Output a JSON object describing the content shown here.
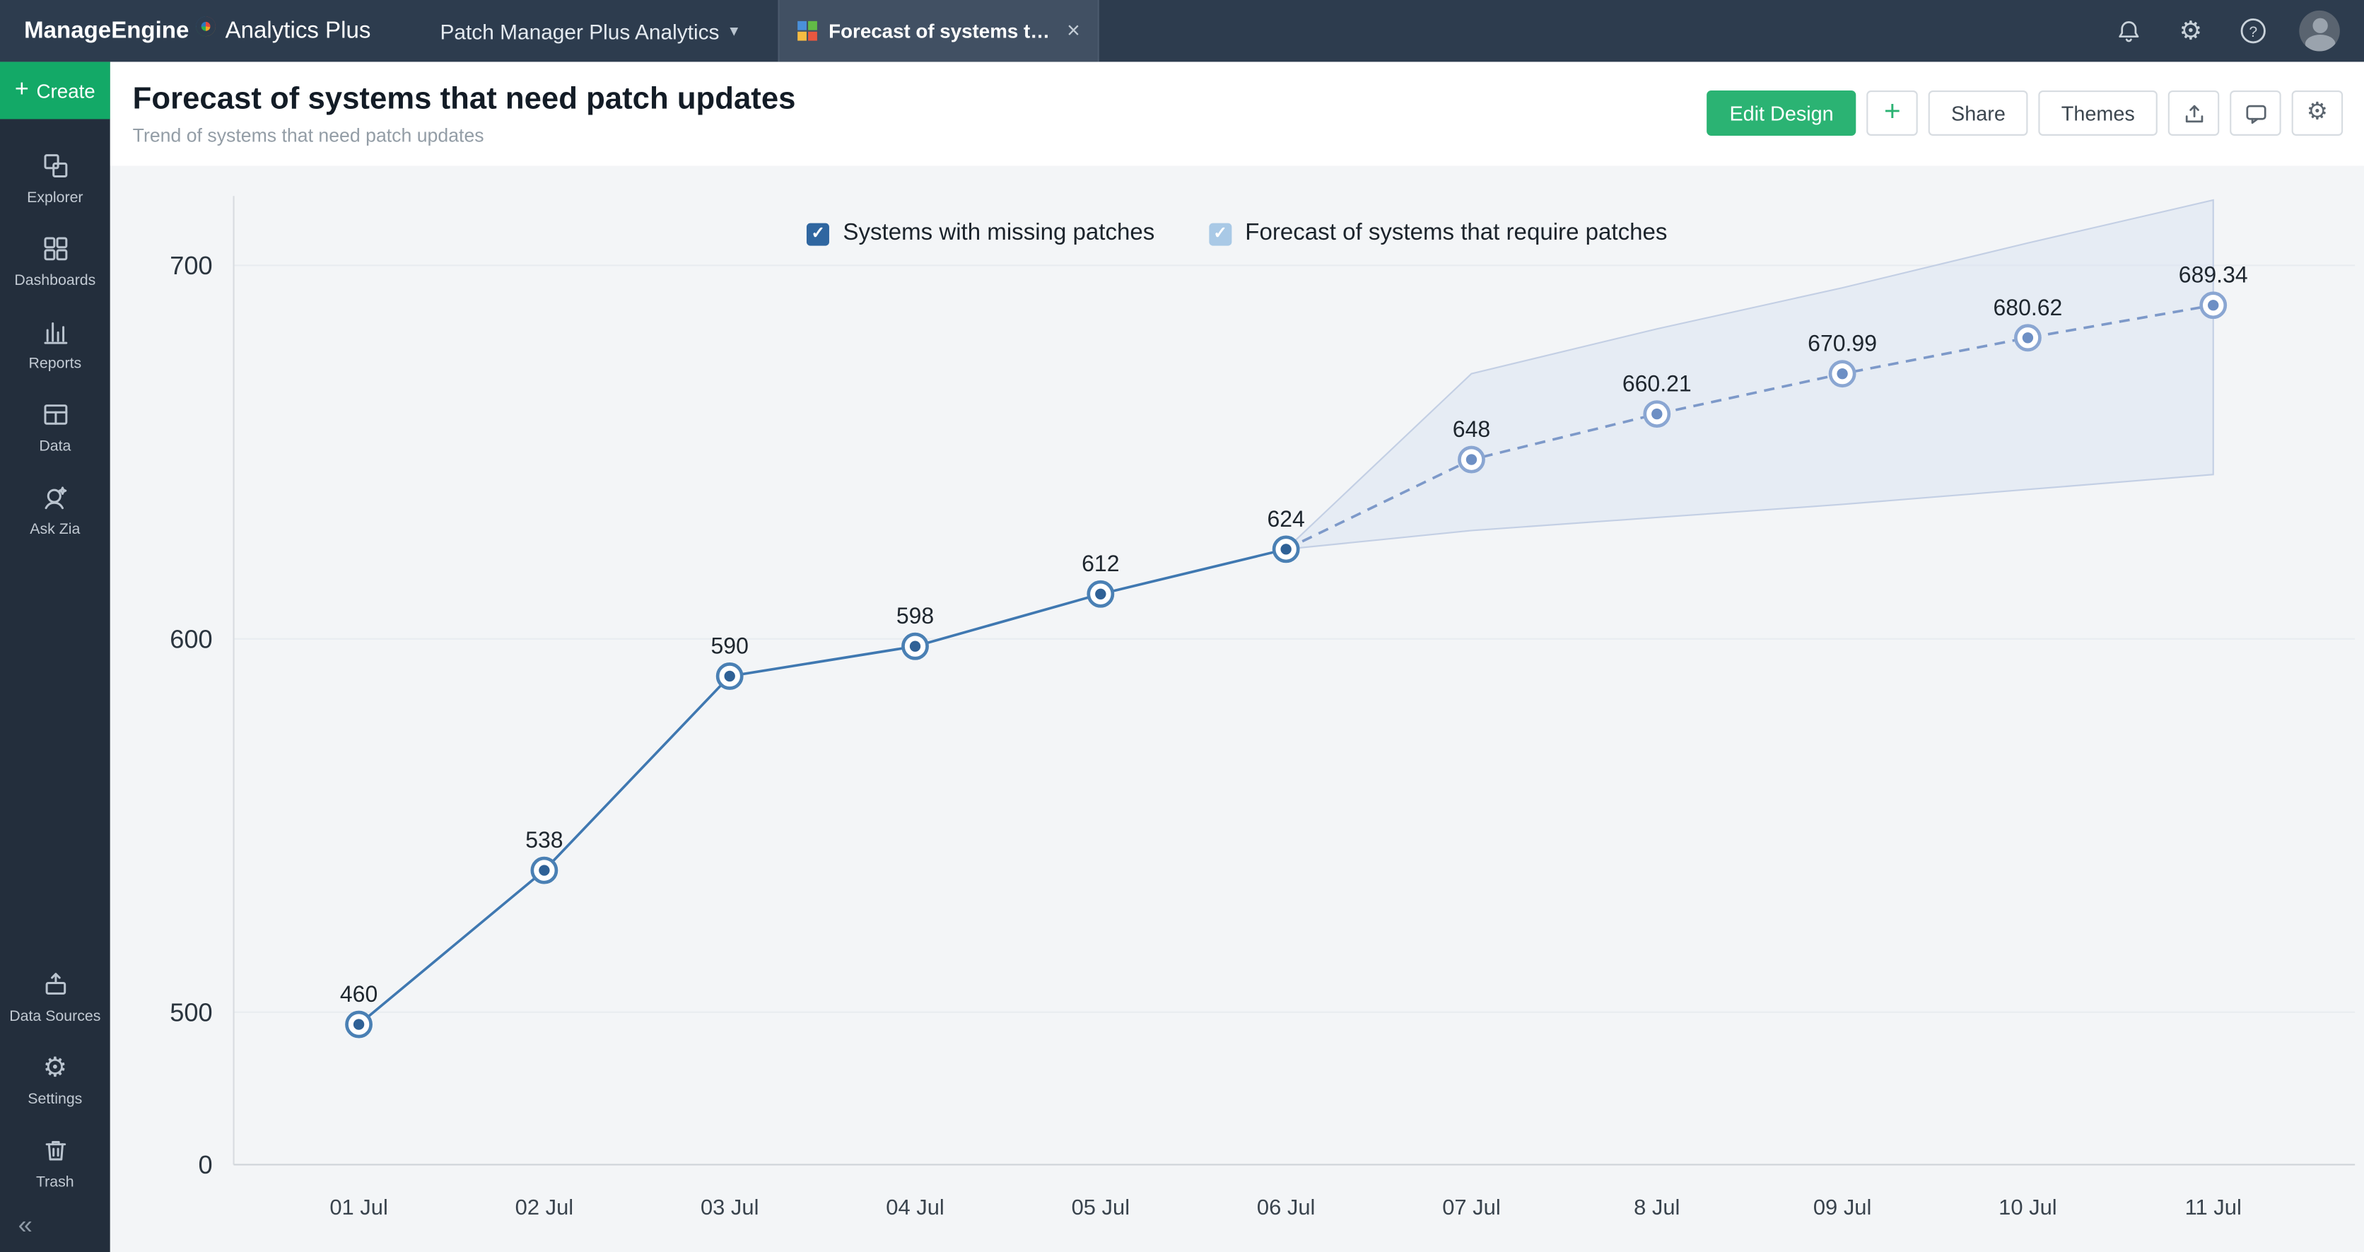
{
  "glyphs": {
    "close": "×",
    "chevron_down": "▾",
    "check": "✓",
    "plus": "+",
    "gear": "⚙",
    "collapse": "«",
    "help": "?"
  },
  "topbar": {
    "brand_manage": "ManageEngine",
    "brand_product": "Analytics Plus",
    "workspace_label": "Patch Manager Plus Analytics",
    "active_tab_label": "Forecast of systems tha..."
  },
  "sidebar": {
    "create_label": "Create",
    "items_top": [
      {
        "label": "Explorer"
      },
      {
        "label": "Dashboards"
      },
      {
        "label": "Reports"
      },
      {
        "label": "Data"
      },
      {
        "label": "Ask Zia"
      }
    ],
    "items_bottom": [
      {
        "label": "Data Sources"
      },
      {
        "label": "Settings"
      },
      {
        "label": "Trash"
      }
    ]
  },
  "header": {
    "title": "Forecast of systems that need patch updates",
    "subtitle": "Trend of systems that need patch updates",
    "edit_design_label": "Edit Design",
    "share_label": "Share",
    "themes_label": "Themes"
  },
  "chart_data": {
    "type": "line",
    "title": "Forecast of systems that need patch updates",
    "categories": [
      "01 Jul",
      "02 Jul",
      "03 Jul",
      "04 Jul",
      "05 Jul",
      "06 Jul",
      "07 Jul",
      "8 Jul",
      "09 Jul",
      "10 Jul",
      "11 Jul"
    ],
    "y_axis": {
      "ticks": [
        0,
        500,
        600,
        700
      ],
      "note": "axis compressed below 500"
    },
    "legend_position": "top",
    "grid": "horizontal",
    "series": [
      {
        "name": "Systems with missing patches",
        "style": "solid",
        "color": "#3f78b1",
        "marker_ring": "#4a80b4",
        "marker_dot": "#2f6196",
        "checkbox_color": "#2f66a0",
        "x": [
          "01 Jul",
          "02 Jul",
          "03 Jul",
          "04 Jul",
          "05 Jul",
          "06 Jul"
        ],
        "values": [
          460,
          538,
          590,
          598,
          612,
          624
        ],
        "labels": [
          "460",
          "538",
          "590",
          "598",
          "612",
          "624"
        ]
      },
      {
        "name": "Forecast of systems that require patches",
        "style": "dashed",
        "color": "#7d99c9",
        "marker_ring": "#8aa6d2",
        "marker_dot": "#6d8fc4",
        "checkbox_color": "#a9c9e6",
        "x": [
          "06 Jul",
          "07 Jul",
          "8 Jul",
          "09 Jul",
          "10 Jul",
          "11 Jul"
        ],
        "values": [
          624,
          648,
          660.21,
          670.99,
          680.62,
          689.34
        ],
        "labels": [
          null,
          "648",
          "660.21",
          "670.99",
          "680.62",
          "689.34"
        ]
      }
    ],
    "forecast_band": {
      "x": [
        "06 Jul",
        "07 Jul",
        "8 Jul",
        "09 Jul",
        "10 Jul",
        "11 Jul"
      ],
      "upper": [
        624,
        671,
        683,
        694,
        706,
        717.5
      ],
      "lower": [
        624,
        629,
        632.5,
        636,
        640,
        644
      ],
      "fill": "#dbe3f2",
      "stroke": "#c3cfe4"
    }
  }
}
